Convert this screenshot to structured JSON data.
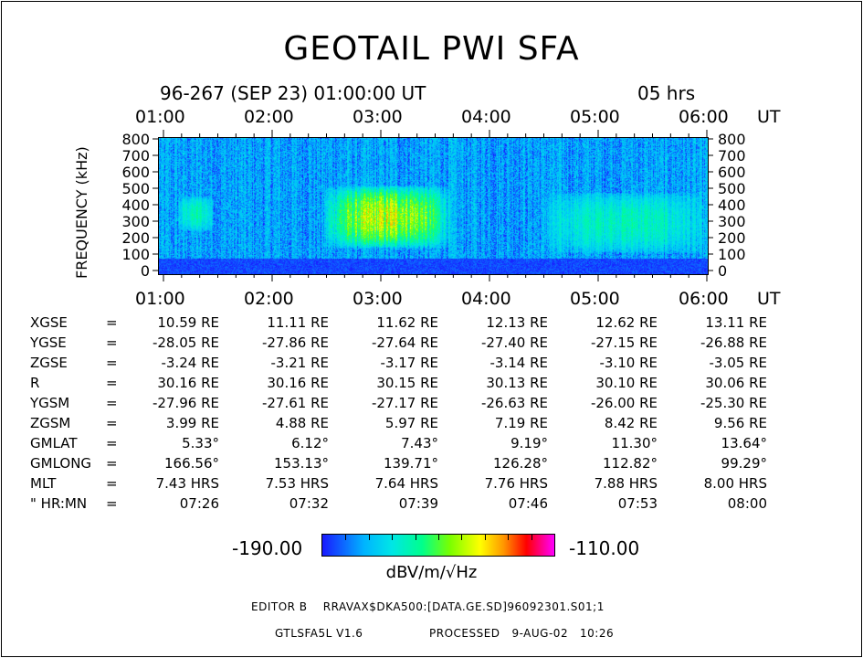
{
  "chart_data": {
    "type": "heatmap",
    "title": "GEOTAIL PWI SFA",
    "subtitle": "96-267 (SEP 23) 01:00:00 UT",
    "duration": "05 hrs",
    "time_unit": "UT",
    "x_tick_labels": [
      "01:00",
      "02:00",
      "03:00",
      "04:00",
      "05:00",
      "06:00"
    ],
    "xlim": [
      "01:00",
      "06:00"
    ],
    "ylabel": "FREQUENCY (kHz)",
    "y_ticks": [
      0,
      100,
      200,
      300,
      400,
      500,
      600,
      700,
      800
    ],
    "ylim": [
      0,
      800
    ],
    "colorbar": {
      "min": "-190.00",
      "max": "-110.00",
      "unit": "dBV/m/√Hz",
      "colors": [
        "#1a1aff",
        "#00b4ff",
        "#00e6e6",
        "#00ff8c",
        "#7aff00",
        "#ffff00",
        "#ff9800",
        "#ff0000",
        "#ff00ff"
      ]
    },
    "features": [
      {
        "label": "background",
        "time_start": "01:00",
        "time_end": "06:00",
        "freq_min": 0,
        "freq_max": 800,
        "level": "-180"
      },
      {
        "label": "low band",
        "time_start": "01:00",
        "time_end": "06:00",
        "freq_min": 0,
        "freq_max": 90,
        "level": "-190"
      },
      {
        "label": "burst 1",
        "time_start": "01:10",
        "time_end": "01:30",
        "freq_min": 250,
        "freq_max": 460,
        "level": "-160"
      },
      {
        "label": "burst 2",
        "time_start": "02:30",
        "time_end": "03:40",
        "freq_min": 150,
        "freq_max": 520,
        "level": "-135"
      },
      {
        "label": "burst 3",
        "time_start": "04:30",
        "time_end": "06:00",
        "freq_min": 120,
        "freq_max": 480,
        "level": "-160"
      }
    ]
  },
  "orbit_table": {
    "rows": [
      {
        "label": "XGSE",
        "eq": "=",
        "values": [
          "10.59 RE",
          "11.11 RE",
          "11.62 RE",
          "12.13 RE",
          "12.62 RE",
          "13.11 RE"
        ]
      },
      {
        "label": "YGSE",
        "eq": "=",
        "values": [
          "-28.05 RE",
          "-27.86 RE",
          "-27.64 RE",
          "-27.40 RE",
          "-27.15 RE",
          "-26.88 RE"
        ]
      },
      {
        "label": "ZGSE",
        "eq": "=",
        "values": [
          "-3.24 RE",
          "-3.21 RE",
          "-3.17 RE",
          "-3.14 RE",
          "-3.10 RE",
          "-3.05 RE"
        ]
      },
      {
        "label": "R",
        "eq": "=",
        "values": [
          "30.16 RE",
          "30.16 RE",
          "30.15 RE",
          "30.13 RE",
          "30.10 RE",
          "30.06 RE"
        ]
      },
      {
        "label": "YGSM",
        "eq": "=",
        "values": [
          "-27.96 RE",
          "-27.61 RE",
          "-27.17 RE",
          "-26.63 RE",
          "-26.00 RE",
          "-25.30 RE"
        ]
      },
      {
        "label": "ZGSM",
        "eq": "=",
        "values": [
          "3.99 RE",
          "4.88 RE",
          "5.97 RE",
          "7.19 RE",
          "8.42 RE",
          "9.56 RE"
        ]
      },
      {
        "label": "GMLAT",
        "eq": "=",
        "values": [
          "5.33°",
          "6.12°",
          "7.43°",
          "9.19°",
          "11.30°",
          "13.64°"
        ]
      },
      {
        "label": "GMLONG",
        "eq": "=",
        "values": [
          "166.56°",
          "153.13°",
          "139.71°",
          "126.28°",
          "112.82°",
          "99.29°"
        ]
      },
      {
        "label": "MLT",
        "eq": "=",
        "values": [
          "7.43 HRS",
          "7.53 HRS",
          "7.64 HRS",
          "7.76 HRS",
          "7.88 HRS",
          "8.00 HRS"
        ]
      },
      {
        "label": "\" HR:MN",
        "eq": "=",
        "values": [
          "07:26",
          "07:32",
          "07:39",
          "07:46",
          "07:53",
          "08:00"
        ]
      }
    ]
  },
  "footer": {
    "editor": "EDITOR B    RRAVAX$DKA500:[DATA.GE.SD]96092301.S01;1",
    "version": "GTLSFA5L V1.6",
    "processed": "PROCESSED   9-AUG-02   10:26"
  }
}
